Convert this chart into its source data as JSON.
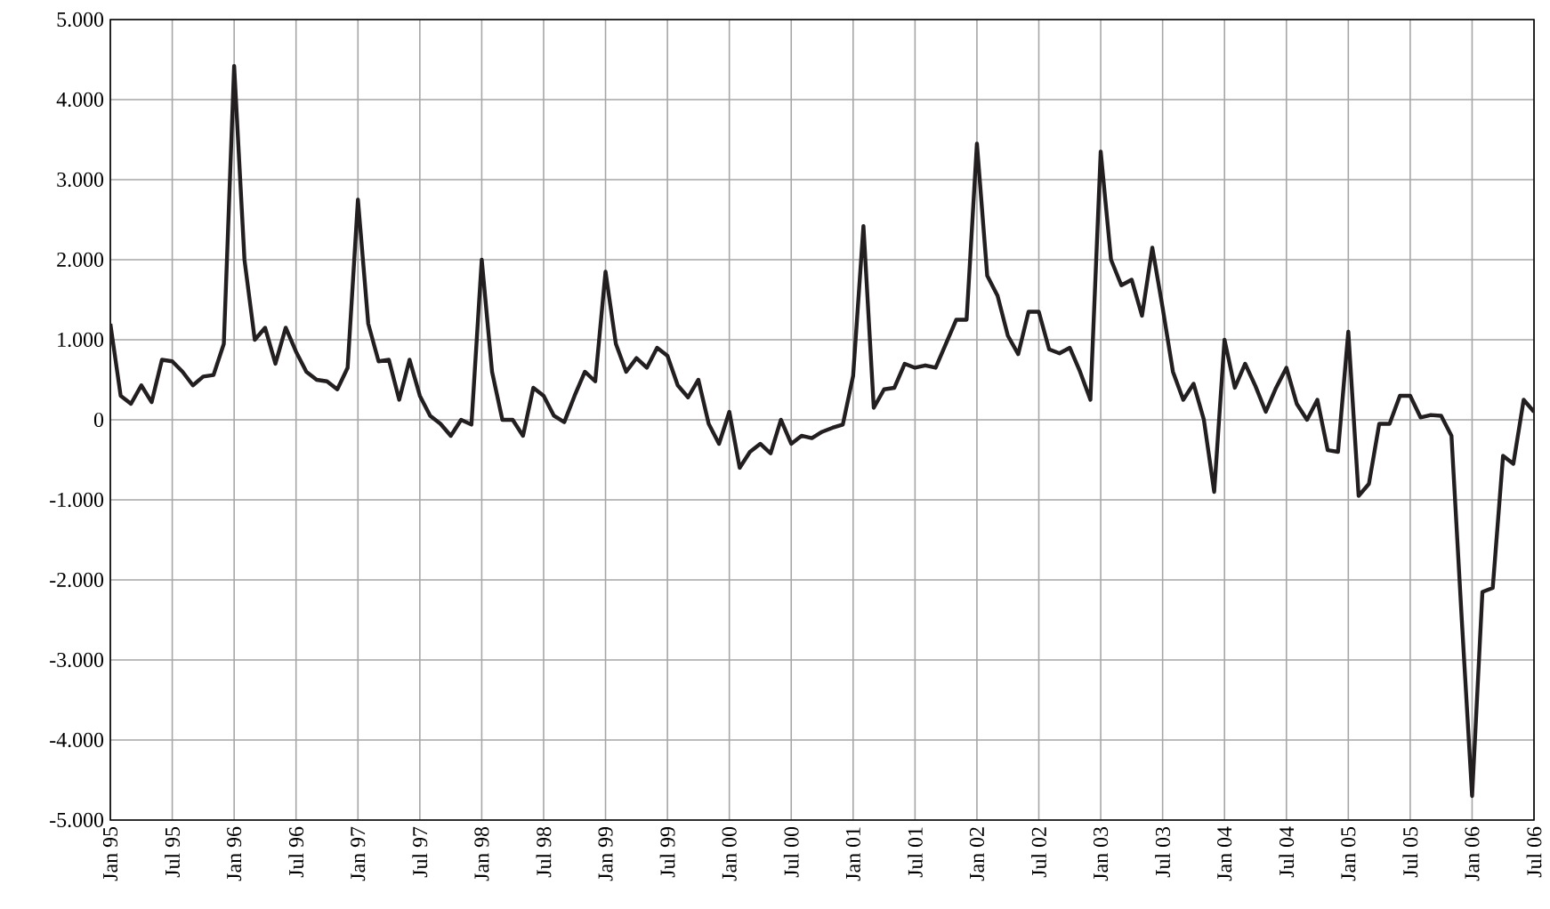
{
  "chart_data": {
    "type": "line",
    "color": "#231f20",
    "grid": true,
    "line_style": "solid",
    "marker": "none",
    "x": [
      "1995-01",
      "1995-02",
      "1995-03",
      "1995-04",
      "1995-05",
      "1995-06",
      "1995-07",
      "1995-08",
      "1995-09",
      "1995-10",
      "1995-11",
      "1995-12",
      "1996-01",
      "1996-02",
      "1996-03",
      "1996-04",
      "1996-05",
      "1996-06",
      "1996-07",
      "1996-08",
      "1996-09",
      "1996-10",
      "1996-11",
      "1996-12",
      "1997-01",
      "1997-02",
      "1997-03",
      "1997-04",
      "1997-05",
      "1997-06",
      "1997-07",
      "1997-08",
      "1997-09",
      "1997-10",
      "1997-11",
      "1997-12",
      "1998-01",
      "1998-02",
      "1998-03",
      "1998-04",
      "1998-05",
      "1998-06",
      "1998-07",
      "1998-08",
      "1998-09",
      "1998-10",
      "1998-11",
      "1998-12",
      "1999-01",
      "1999-02",
      "1999-03",
      "1999-04",
      "1999-05",
      "1999-06",
      "1999-07",
      "1999-08",
      "1999-09",
      "1999-10",
      "1999-11",
      "1999-12",
      "2000-01",
      "2000-02",
      "2000-03",
      "2000-04",
      "2000-05",
      "2000-06",
      "2000-07",
      "2000-08",
      "2000-09",
      "2000-10",
      "2000-11",
      "2000-12",
      "2001-01",
      "2001-02",
      "2001-03",
      "2001-04",
      "2001-05",
      "2001-06",
      "2001-07",
      "2001-08",
      "2001-09",
      "2001-10",
      "2001-11",
      "2001-12",
      "2002-01",
      "2002-02",
      "2002-03",
      "2002-04",
      "2002-05",
      "2002-06",
      "2002-07",
      "2002-08",
      "2002-09",
      "2002-10",
      "2002-11",
      "2002-12",
      "2003-01",
      "2003-02",
      "2003-03",
      "2003-04",
      "2003-05",
      "2003-06",
      "2003-07",
      "2003-08",
      "2003-09",
      "2003-10",
      "2003-11",
      "2003-12",
      "2004-01",
      "2004-02",
      "2004-03",
      "2004-04",
      "2004-05",
      "2004-06",
      "2004-07",
      "2004-08",
      "2004-09",
      "2004-10",
      "2004-11",
      "2004-12",
      "2005-01",
      "2005-02",
      "2005-03",
      "2005-04",
      "2005-05",
      "2005-06",
      "2005-07",
      "2005-08",
      "2005-09",
      "2005-10",
      "2005-11",
      "2005-12",
      "2006-01",
      "2006-02",
      "2006-03",
      "2006-04",
      "2006-05",
      "2006-06",
      "2006-07"
    ],
    "values": [
      1200,
      300,
      200,
      430,
      220,
      750,
      730,
      600,
      430,
      540,
      560,
      950,
      4420,
      2000,
      1000,
      1150,
      700,
      1150,
      850,
      600,
      500,
      480,
      380,
      650,
      2750,
      1200,
      730,
      750,
      250,
      750,
      300,
      50,
      -50,
      -200,
      0,
      -60,
      2000,
      600,
      0,
      0,
      -200,
      400,
      300,
      50,
      -30,
      300,
      600,
      480,
      1850,
      950,
      600,
      770,
      650,
      900,
      800,
      430,
      280,
      500,
      -50,
      -300,
      100,
      -600,
      -400,
      -300,
      -420,
      0,
      -300,
      -200,
      -230,
      -150,
      -100,
      -60,
      550,
      2420,
      150,
      380,
      400,
      700,
      650,
      680,
      650,
      950,
      1250,
      1250,
      3450,
      1800,
      1550,
      1050,
      820,
      1350,
      1350,
      880,
      830,
      900,
      600,
      250,
      3350,
      2000,
      1680,
      1750,
      1300,
      2150,
      1400,
      600,
      250,
      450,
      0,
      -900,
      1000,
      400,
      700,
      420,
      100,
      400,
      650,
      200,
      0,
      250,
      -380,
      -400,
      1100,
      -950,
      -800,
      -50,
      -50,
      300,
      300,
      30,
      60,
      50,
      -200,
      -2500,
      -4700,
      -2150,
      -2100,
      -450,
      -550,
      250,
      100
    ],
    "xlim": [
      "1995-01",
      "2006-07"
    ],
    "xticks": [
      {
        "value": "1995-01",
        "label": "Jan 95"
      },
      {
        "value": "1995-07",
        "label": "Jul 95"
      },
      {
        "value": "1996-01",
        "label": "Jan 96"
      },
      {
        "value": "1996-07",
        "label": "Jul 96"
      },
      {
        "value": "1997-01",
        "label": "Jan 97"
      },
      {
        "value": "1997-07",
        "label": "Jul 97"
      },
      {
        "value": "1998-01",
        "label": "Jan 98"
      },
      {
        "value": "1998-07",
        "label": "Jul 98"
      },
      {
        "value": "1999-01",
        "label": "Jan 99"
      },
      {
        "value": "1999-07",
        "label": "Jul 99"
      },
      {
        "value": "2000-01",
        "label": "Jan 00"
      },
      {
        "value": "2000-07",
        "label": "Jul 00"
      },
      {
        "value": "2001-01",
        "label": "Jan 01"
      },
      {
        "value": "2001-07",
        "label": "Jul 01"
      },
      {
        "value": "2002-01",
        "label": "Jan 02"
      },
      {
        "value": "2002-07",
        "label": "Jul 02"
      },
      {
        "value": "2003-01",
        "label": "Jan 03"
      },
      {
        "value": "2003-07",
        "label": "Jul 03"
      },
      {
        "value": "2004-01",
        "label": "Jan 04"
      },
      {
        "value": "2004-07",
        "label": "Jul 04"
      },
      {
        "value": "2005-01",
        "label": "Jan 05"
      },
      {
        "value": "2005-07",
        "label": "Jul 05"
      },
      {
        "value": "2006-01",
        "label": "Jan 06"
      },
      {
        "value": "2006-07",
        "label": "Jul 06"
      }
    ],
    "ylim": [
      -5000,
      5000
    ],
    "yticks": [
      {
        "value": -5000,
        "label": "-5.000"
      },
      {
        "value": -4000,
        "label": "-4.000"
      },
      {
        "value": -3000,
        "label": "-3.000"
      },
      {
        "value": -2000,
        "label": "-2.000"
      },
      {
        "value": -1000,
        "label": "-1.000"
      },
      {
        "value": 0,
        "label": "0"
      },
      {
        "value": 1000,
        "label": "1.000"
      },
      {
        "value": 2000,
        "label": "2.000"
      },
      {
        "value": 3000,
        "label": "3.000"
      },
      {
        "value": 4000,
        "label": "4.000"
      },
      {
        "value": 5000,
        "label": "5.000"
      }
    ]
  }
}
